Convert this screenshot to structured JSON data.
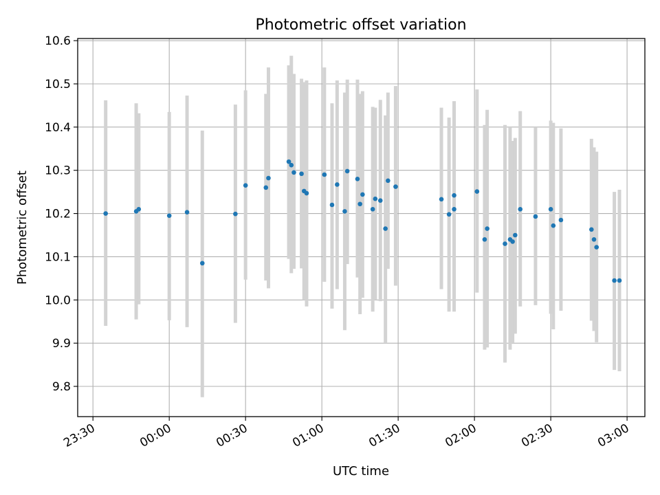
{
  "chart_data": {
    "type": "scatter",
    "title": "Photometric offset variation",
    "xlabel": "UTC time",
    "ylabel": "Photometric offset",
    "xlim": [
      "23:24",
      "03:07"
    ],
    "ylim": [
      9.73,
      10.605
    ],
    "grid": true,
    "x_ticks": [
      "23:30",
      "00:00",
      "00:30",
      "01:00",
      "01:30",
      "02:00",
      "02:30",
      "03:00"
    ],
    "y_ticks": [
      "9.8",
      "9.9",
      "10.0",
      "10.1",
      "10.2",
      "10.3",
      "10.4",
      "10.5",
      "10.6"
    ],
    "y_tick_values": [
      9.8,
      9.9,
      10.0,
      10.1,
      10.2,
      10.3,
      10.4,
      10.5,
      10.6
    ],
    "point_color": "#1f77b4",
    "errorbar_color": "#d3d3d3",
    "series": [
      {
        "x": [
          "23:35",
          "23:47",
          "23:48",
          "00:00",
          "00:07",
          "00:13",
          "00:26",
          "00:30",
          "00:38",
          "00:39",
          "00:47",
          "00:48",
          "00:49",
          "00:52",
          "00:53",
          "00:54",
          "01:01",
          "01:04",
          "01:06",
          "01:09",
          "01:10",
          "01:14",
          "01:15",
          "01:16",
          "01:20",
          "01:21",
          "01:23",
          "01:25",
          "01:26",
          "01:29",
          "01:47",
          "01:50",
          "01:52",
          "01:52",
          "02:01",
          "02:04",
          "02:05",
          "02:12",
          "02:14",
          "02:15",
          "02:16",
          "02:18",
          "02:24",
          "02:30",
          "02:31",
          "02:34",
          "02:46",
          "02:47",
          "02:48",
          "02:55",
          "02:57"
        ],
        "y": [
          10.2,
          10.205,
          10.21,
          10.195,
          10.203,
          10.085,
          10.199,
          10.265,
          10.26,
          10.282,
          10.32,
          10.312,
          10.295,
          10.292,
          10.252,
          10.247,
          10.29,
          10.22,
          10.267,
          10.205,
          10.298,
          10.28,
          10.222,
          10.244,
          10.21,
          10.234,
          10.23,
          10.165,
          10.276,
          10.262,
          10.233,
          10.198,
          10.21,
          10.242,
          10.251,
          10.14,
          10.165,
          10.13,
          10.14,
          10.135,
          10.15,
          10.21,
          10.193,
          10.21,
          10.172,
          10.185,
          10.163,
          10.14,
          10.122,
          10.045,
          10.045
        ],
        "y_lower": [
          9.94,
          9.955,
          9.99,
          9.953,
          9.937,
          9.775,
          9.947,
          10.047,
          10.045,
          10.027,
          10.095,
          10.062,
          10.072,
          10.073,
          10.0,
          9.985,
          10.042,
          9.98,
          10.025,
          9.93,
          10.083,
          10.052,
          9.967,
          10.005,
          9.973,
          10.0,
          9.997,
          9.9,
          10.072,
          10.033,
          10.025,
          9.973,
          9.973,
          10.0,
          10.017,
          9.885,
          9.89,
          9.855,
          9.885,
          9.9,
          9.922,
          9.985,
          9.988,
          9.968,
          9.932,
          9.975,
          9.952,
          9.928,
          9.902,
          9.838,
          9.835
        ],
        "y_upper": [
          10.462,
          10.455,
          10.432,
          10.435,
          10.473,
          10.392,
          10.452,
          10.485,
          10.477,
          10.538,
          10.543,
          10.565,
          10.523,
          10.512,
          10.504,
          10.508,
          10.538,
          10.455,
          10.508,
          10.48,
          10.51,
          10.51,
          10.477,
          10.483,
          10.447,
          10.445,
          10.463,
          10.427,
          10.48,
          10.495,
          10.445,
          10.422,
          10.447,
          10.46,
          10.487,
          10.405,
          10.44,
          10.405,
          10.4,
          10.368,
          10.375,
          10.437,
          10.4,
          10.415,
          10.41,
          10.397,
          10.373,
          10.353,
          10.343,
          10.25,
          10.255
        ]
      }
    ]
  }
}
